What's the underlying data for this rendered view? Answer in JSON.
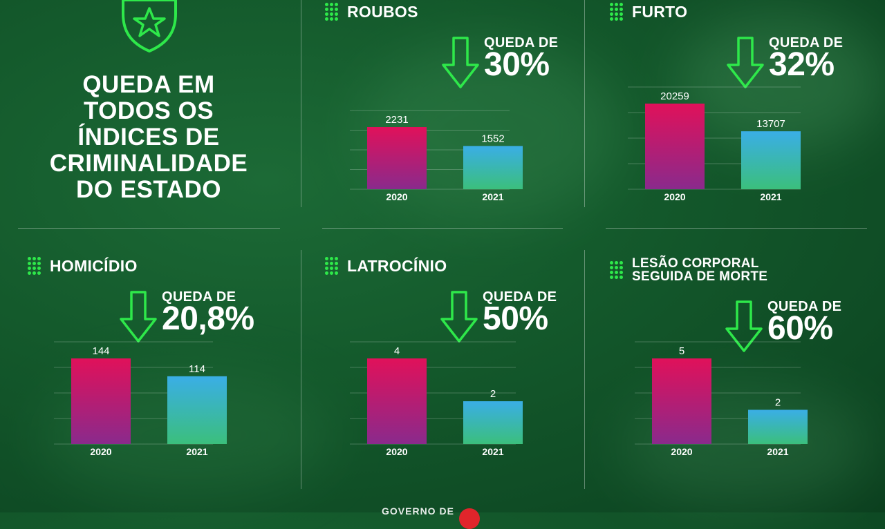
{
  "headline": [
    "QUEDA EM",
    "TODOS OS",
    "ÍNDICES DE",
    "CRIMINALIDADE",
    "DO ESTADO"
  ],
  "footer_partial": "GOVERNO DE",
  "colors": {
    "bar2020_top": "#e0115a",
    "bar2020_bottom": "#8a2a8c",
    "bar2021_top": "#3aaee6",
    "bar2021_bottom": "#3bbf7c",
    "accent": "#2ee84a"
  },
  "chart_data": [
    {
      "type": "bar",
      "title": "ROUBOS",
      "drop_label": "QUEDA DE",
      "drop_value": "30%",
      "categories": [
        "2020",
        "2021"
      ],
      "values": [
        2231,
        1552
      ],
      "value_labels": [
        "2231",
        "1552"
      ]
    },
    {
      "type": "bar",
      "title": "FURTO",
      "drop_label": "QUEDA DE",
      "drop_value": "32%",
      "categories": [
        "2020",
        "2021"
      ],
      "values": [
        20259,
        13707
      ],
      "value_labels": [
        "20259",
        "13707"
      ]
    },
    {
      "type": "bar",
      "title": "HOMICÍDIO",
      "drop_label": "QUEDA DE",
      "drop_value": "20,8%",
      "categories": [
        "2020",
        "2021"
      ],
      "values": [
        144,
        114
      ],
      "value_labels": [
        "144",
        "114"
      ]
    },
    {
      "type": "bar",
      "title": "LATROCÍNIO",
      "drop_label": "QUEDA DE",
      "drop_value": "50%",
      "categories": [
        "2020",
        "2021"
      ],
      "values": [
        4,
        2
      ],
      "value_labels": [
        "4",
        "2"
      ]
    },
    {
      "type": "bar",
      "title": "LESÃO CORPORAL SEGUIDA DE MORTE",
      "title_lines": [
        "LESÃO CORPORAL",
        "SEGUIDA DE MORTE"
      ],
      "drop_label": "QUEDA DE",
      "drop_value": "60%",
      "categories": [
        "2020",
        "2021"
      ],
      "values": [
        5,
        2
      ],
      "value_labels": [
        "5",
        "2"
      ]
    }
  ]
}
